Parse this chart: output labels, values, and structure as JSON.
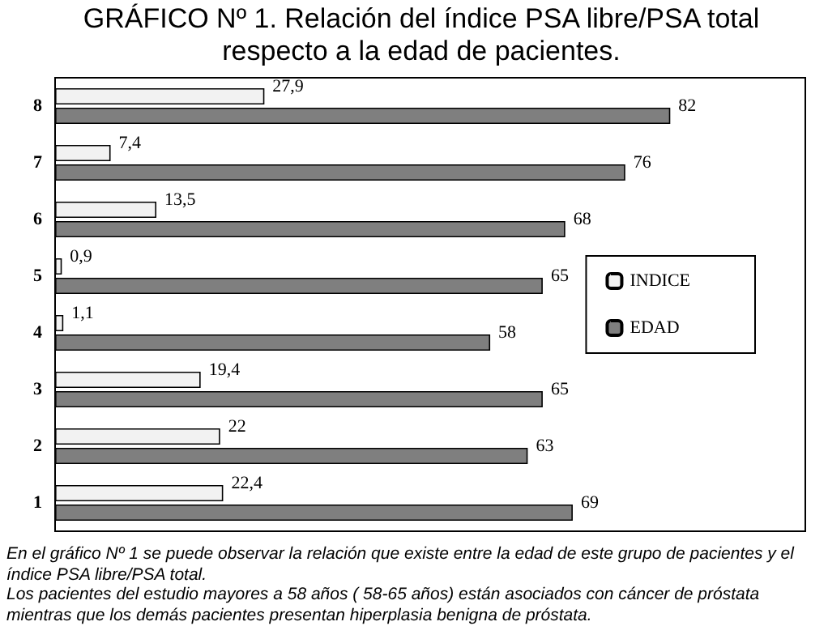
{
  "chart_data": {
    "type": "bar",
    "orientation": "horizontal",
    "title": "GRÁFICO Nº 1. Relación del índice PSA libre/PSA total respecto a la edad de pacientes.",
    "categories": [
      "8",
      "7",
      "6",
      "5",
      "4",
      "3",
      "2",
      "1"
    ],
    "series": [
      {
        "name": "INDICE",
        "color": "#f2f2f2",
        "values": [
          27.9,
          7.4,
          13.5,
          0.9,
          1.1,
          19.4,
          22,
          22.4
        ],
        "value_labels": [
          "27,9",
          "7,4",
          "13,5",
          "0,9",
          "1,1",
          "19,4",
          "22",
          "22,4"
        ]
      },
      {
        "name": "EDAD",
        "color": "#7f7f7f",
        "values": [
          82,
          76,
          68,
          65,
          58,
          65,
          63,
          69
        ],
        "value_labels": [
          "82",
          "76",
          "68",
          "65",
          "58",
          "65",
          "63",
          "69"
        ]
      }
    ],
    "legend": "right",
    "annotations": [
      "En el gráfico Nº 1 se puede observar la relación que existe entre la edad de este grupo de pacientes y el índice PSA libre/PSA total.",
      "Los pacientes del estudio mayores a 58 años ( 58-65 años) están asociados con cáncer de próstata mientras que los demás pacientes presentan  hiperplasia benigna de próstata."
    ]
  }
}
